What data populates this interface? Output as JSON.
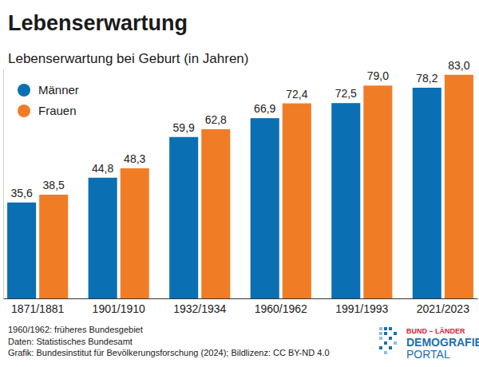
{
  "chart_data": {
    "type": "bar",
    "title": "Lebenserwartung",
    "subtitle": "Lebenserwartung bei Geburt (in Jahren)",
    "categories": [
      "1871/1881",
      "1901/1910",
      "1932/1934",
      "1960/1962",
      "1991/1993",
      "2021/2023"
    ],
    "series": [
      {
        "name": "Männer",
        "color": "#0b6fb3",
        "values": [
          35.6,
          44.8,
          59.9,
          66.9,
          72.5,
          78.2
        ],
        "value_labels": [
          "35,6",
          "44,8",
          "59,9",
          "66,9",
          "72,5",
          "78,2"
        ]
      },
      {
        "name": "Frauen",
        "color": "#f07d26",
        "values": [
          38.5,
          48.3,
          62.8,
          72.4,
          79.0,
          83.0
        ],
        "value_labels": [
          "38,5",
          "48,3",
          "62,8",
          "72,4",
          "79,0",
          "83,0"
        ]
      }
    ],
    "ylim": [
      0,
      85
    ],
    "yticks": [
      0
    ],
    "tick_labels": "x",
    "grid": false,
    "legend": "top-left",
    "data_labels": true,
    "notes": [
      "1960/1962: früheres Bundesgebiet",
      "Daten: Statistisches Bundesamt",
      "Grafik: Bundesinstitut für Bevölkerungsforschung (2024); Bildlizenz: CC BY-ND 4.0"
    ],
    "logo": [
      "BUND – LÄNDER",
      "DEMOGRAFIE",
      "PORTAL"
    ]
  }
}
